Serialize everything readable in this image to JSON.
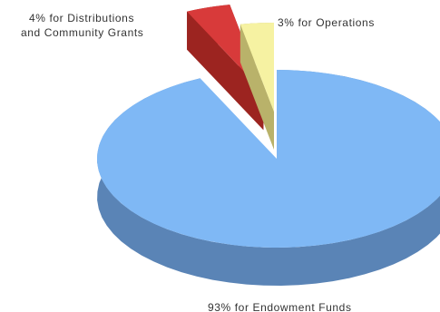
{
  "chart_data": {
    "type": "pie",
    "title": "",
    "style": "3d-exploded",
    "series": [
      {
        "values": [
          93,
          4,
          3
        ],
        "labels": [
          "93% for Endowment Funds",
          "4% for Distributions and Community Grants",
          "3% for Operations"
        ],
        "colors": [
          "#7fb8f5",
          "#d83a3a",
          "#f6f2a2"
        ],
        "side_colors": [
          "#5a84b6",
          "#9c2420",
          "#b9b26a"
        ]
      }
    ],
    "labels_text": {
      "endowment": "93% for Endowment Funds",
      "grants_line1": "4% for Distributions",
      "grants_line2": "and Community Grants",
      "operations": "3% for Operations"
    }
  }
}
